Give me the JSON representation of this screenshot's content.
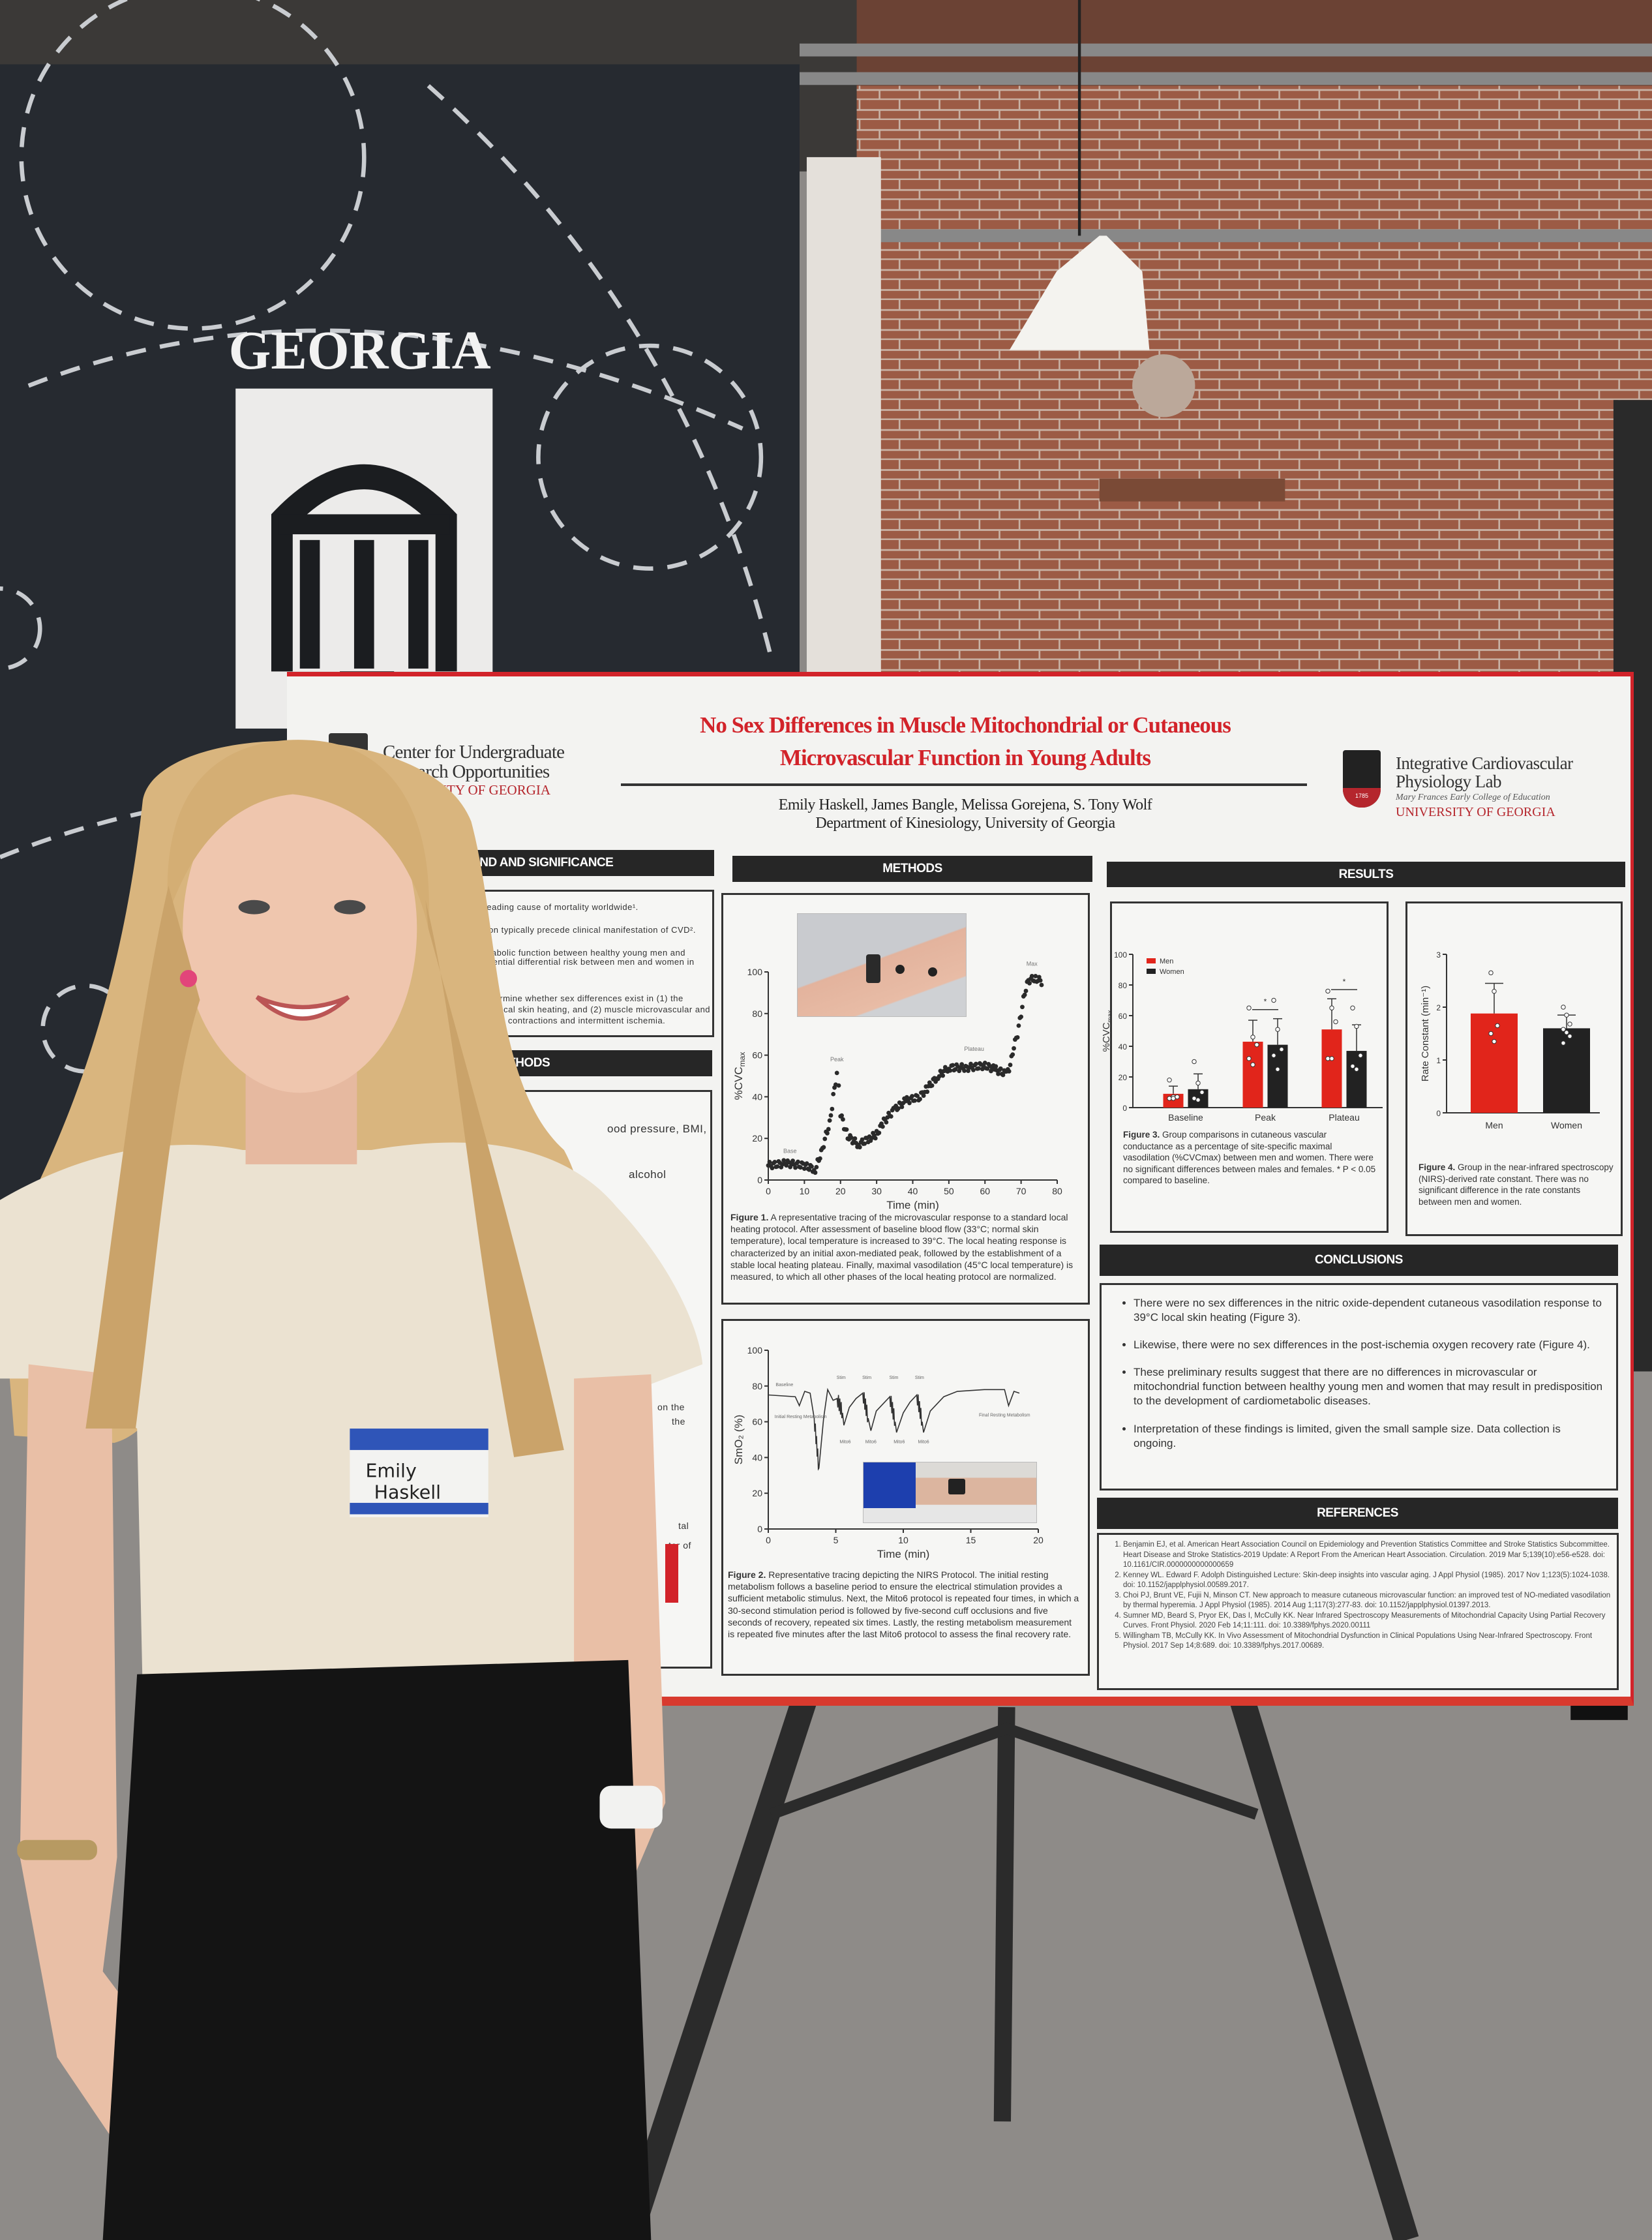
{
  "scene": {
    "banner_wordmark": "GEORGIA",
    "name_tag": {
      "first": "Emily",
      "last": "Haskell"
    }
  },
  "poster": {
    "title_line1": "No Sex Differences in Muscle Mitochondrial or Cutaneous",
    "title_line2": "Microvascular Function in Young Adults",
    "authors": "Emily Haskell, James Bangle, Melissa Gorejena, S. Tony Wolf",
    "department": "Department of Kinesiology, University of Georgia",
    "left_logo": {
      "line1": "Center for Undergraduate",
      "line2": "Research Opportunities",
      "line3": "UNIVERSITY OF GEORGIA"
    },
    "right_logo": {
      "line1": "Integrative Cardiovascular",
      "line2": "Physiology Lab",
      "line3": "Mary Frances Early College of Education",
      "line4": "UNIVERSITY OF GEORGIA",
      "seal_year": "1785"
    },
    "sections": {
      "background": "KGROUND AND SIGNIFICANCE",
      "methods_left": "ETHODS",
      "methods": "METHODS",
      "results": "RESULTS",
      "conclusions": "CONCLUSIONS",
      "references": "REFERENCES"
    },
    "background_fragments": [
      ") are the leading cause of mortality worldwide¹.",
      "ysfunction typically precede clinical manifestation of CVD².",
      "rdiometabolic function between healthy young men and",
      "into potential differential risk between men and women in",
      "s.",
      "to determine whether sex differences exist in (1) the",
      "o 39°C local skin heating, and (2) muscle microvascular and",
      "ary muscle contractions and intermittent ischemia."
    ],
    "methods_fragments": [
      "ood pressure, BMI,",
      "alcohol",
      "on the",
      "the",
      "tal",
      "tor of"
    ],
    "figure1_caption": {
      "label": "Figure 1.",
      "text": " A representative tracing of the microvascular response to a standard local heating protocol. After assessment of baseline blood flow (33°C; normal skin temperature), local temperature is increased to 39°C. The local heating response is characterized by an initial axon-mediated peak, followed by the establishment of a stable local heating plateau. Finally, maximal vasodilation (45°C local temperature) is measured, to which all other phases of the local heating protocol are normalized."
    },
    "figure2_caption": {
      "label": "Figure 2.",
      "text": " Representative tracing depicting the NIRS Protocol. The initial resting metabolism follows a baseline period to ensure the electrical stimulation provides a sufficient metabolic stimulus. Next, the Mito6 protocol is repeated four times, in which a 30-second stimulation period is followed by five-second cuff occlusions and five seconds of recovery, repeated six times. Lastly, the resting metabolism measurement is repeated five minutes after the last Mito6 protocol to assess the final recovery rate."
    },
    "figure3_caption": {
      "label": "Figure 3.",
      "text": " Group comparisons in cutaneous vascular conductance as a percentage of site-specific maximal vasodilation (%CVCmax) between men and women. There were no significant differences between males and females. * P < 0.05 compared to baseline."
    },
    "figure4_caption": {
      "label": "Figure 4.",
      "text": " Group in the near-infrared spectroscopy (NIRS)-derived rate constant. There was no significant difference in the rate constants between men and women."
    },
    "conclusions": [
      "There were no sex differences in the nitric oxide-dependent cutaneous vasodilation response to 39°C local skin heating (Figure 3).",
      "Likewise, there were no sex differences in the post-ischemia oxygen recovery rate (Figure 4).",
      "These preliminary results suggest that there are no differences in microvascular or mitochondrial function between healthy young men and women that may result in predisposition to the development of cardiometabolic diseases.",
      "Interpretation of these findings is limited, given the small sample size. Data collection is ongoing."
    ],
    "references": [
      "Benjamin EJ, et al. American Heart Association Council on Epidemiology and Prevention Statistics Committee and Stroke Statistics Subcommittee. Heart Disease and Stroke Statistics-2019 Update: A Report From the American Heart Association. Circulation. 2019 Mar 5;139(10):e56-e528. doi: 10.1161/CIR.0000000000000659",
      "Kenney WL. Edward F. Adolph Distinguished Lecture: Skin-deep insights into vascular aging. J Appl Physiol (1985). 2017 Nov 1;123(5):1024-1038. doi: 10.1152/japplphysiol.00589.2017.",
      "Choi PJ, Brunt VE, Fujii N, Minson CT. New approach to measure cutaneous microvascular function: an improved test of NO-mediated vasodilation by thermal hyperemia. J Appl Physiol (1985). 2014 Aug 1;117(3):277-83. doi: 10.1152/japplphysiol.01397.2013.",
      "Sumner MD, Beard S, Pryor EK, Das I, McCully KK. Near Infrared Spectroscopy Measurements of Mitochondrial Capacity Using Partial Recovery Curves. Front Physiol. 2020 Feb 14;11:111. doi: 10.3389/fphys.2020.00111",
      "Willingham TB, McCully KK. In Vivo Assessment of Mitochondrial Dysfunction in Clinical Populations Using Near-Infrared Spectroscopy. Front Physiol. 2017 Sep 14;8:689. doi: 10.3389/fphys.2017.00689."
    ]
  },
  "colors": {
    "uga_red": "#d2232a",
    "men": "#e1251b",
    "women": "#222222",
    "banner": "#262a30"
  },
  "chart_data": [
    {
      "id": "figure1",
      "type": "scatter",
      "xlabel": "Time (min)",
      "ylabel": "%CVC",
      "ylabel_sub": "max",
      "xlim": [
        0,
        80
      ],
      "ylim": [
        0,
        100
      ],
      "xticks": [
        0,
        10,
        20,
        30,
        40,
        50,
        60,
        70,
        80
      ],
      "yticks": [
        0,
        20,
        40,
        60,
        80,
        100
      ],
      "trace": [
        [
          0,
          7
        ],
        [
          5,
          8
        ],
        [
          10,
          7
        ],
        [
          13,
          5
        ],
        [
          14,
          10
        ],
        [
          15,
          15
        ],
        [
          16,
          22
        ],
        [
          17,
          27
        ],
        [
          18,
          40
        ],
        [
          19,
          51
        ],
        [
          19.5,
          46
        ],
        [
          20,
          32
        ],
        [
          21,
          26
        ],
        [
          22,
          21
        ],
        [
          25,
          17
        ],
        [
          28,
          20
        ],
        [
          30,
          22
        ],
        [
          32,
          28
        ],
        [
          35,
          34
        ],
        [
          38,
          38
        ],
        [
          42,
          40
        ],
        [
          44,
          44
        ],
        [
          47,
          50
        ],
        [
          50,
          54
        ],
        [
          55,
          54
        ],
        [
          60,
          55
        ],
        [
          63,
          53
        ],
        [
          66,
          51
        ],
        [
          67,
          55
        ],
        [
          68,
          64
        ],
        [
          69,
          70
        ],
        [
          70,
          80
        ],
        [
          71,
          90
        ],
        [
          72,
          96
        ],
        [
          74,
          97
        ],
        [
          76,
          95
        ]
      ],
      "annotations": [
        {
          "text": "Base",
          "x": 6,
          "y": 13
        },
        {
          "text": "Peak",
          "x": 19,
          "y": 57
        },
        {
          "text": "Plateau",
          "x": 57,
          "y": 62
        },
        {
          "text": "Max",
          "x": 73,
          "y": 103
        }
      ]
    },
    {
      "id": "figure2",
      "type": "line",
      "xlabel": "Time (min)",
      "ylabel": "SmO₂ (%)",
      "xlim": [
        0,
        20
      ],
      "ylim": [
        0,
        100
      ],
      "xticks": [
        0,
        5,
        10,
        15,
        20
      ],
      "yticks": [
        0,
        20,
        40,
        60,
        80,
        100
      ],
      "trace": [
        [
          0,
          75
        ],
        [
          2,
          74
        ],
        [
          2.3,
          69
        ],
        [
          2.7,
          77
        ],
        [
          3.1,
          76
        ],
        [
          3.4,
          62
        ],
        [
          3.75,
          34
        ],
        [
          4.1,
          62
        ],
        [
          4.4,
          78
        ],
        [
          4.8,
          72
        ],
        [
          5.1,
          73
        ],
        [
          5.5,
          65
        ],
        [
          5.6,
          58
        ],
        [
          6,
          68
        ],
        [
          6.5,
          73
        ],
        [
          7,
          76
        ],
        [
          7.4,
          62
        ],
        [
          7.6,
          55
        ],
        [
          8,
          66
        ],
        [
          8.5,
          70
        ],
        [
          9,
          74
        ],
        [
          9.4,
          60
        ],
        [
          9.5,
          54
        ],
        [
          10,
          65
        ],
        [
          10.5,
          71
        ],
        [
          11,
          75
        ],
        [
          11.4,
          60
        ],
        [
          11.5,
          54
        ],
        [
          12,
          66
        ],
        [
          12.5,
          70
        ],
        [
          13,
          74
        ],
        [
          14,
          77
        ],
        [
          16,
          78
        ],
        [
          17.5,
          78
        ],
        [
          17.8,
          69
        ],
        [
          18.2,
          77
        ],
        [
          18.6,
          76
        ]
      ],
      "annotations": [
        {
          "text": "Baseline",
          "x": 1.2,
          "y": 80
        },
        {
          "text": "Initial Resting Metabolism",
          "x": 2.4,
          "y": 62
        },
        {
          "text": "Stim",
          "x": 5.4,
          "y": 84
        },
        {
          "text": "Stim",
          "x": 7.3,
          "y": 84
        },
        {
          "text": "Stim",
          "x": 9.3,
          "y": 84
        },
        {
          "text": "Stim",
          "x": 11.2,
          "y": 84
        },
        {
          "text": "Mito6",
          "x": 5.7,
          "y": 48
        },
        {
          "text": "Mito6",
          "x": 7.6,
          "y": 48
        },
        {
          "text": "Mito6",
          "x": 9.7,
          "y": 48
        },
        {
          "text": "Mito6",
          "x": 11.5,
          "y": 48
        },
        {
          "text": "Final Resting Metabolism",
          "x": 17.5,
          "y": 63
        }
      ]
    },
    {
      "id": "figure3",
      "type": "bar",
      "ylabel": "%CVC",
      "ylabel_sub": "max",
      "ylim": [
        0,
        100
      ],
      "yticks": [
        0,
        20,
        40,
        60,
        80,
        100
      ],
      "categories": [
        "Baseline",
        "Peak",
        "Plateau"
      ],
      "series": [
        {
          "name": "Men",
          "values": [
            9,
            43,
            51
          ],
          "error_upper": [
            14,
            57,
            71
          ],
          "points": [
            [
              18,
              7,
              7,
              6,
              6
            ],
            [
              65,
              46,
              41,
              32,
              28
            ],
            [
              76,
              65,
              56,
              32,
              32
            ]
          ]
        },
        {
          "name": "Women",
          "values": [
            12,
            41,
            37
          ],
          "error_upper": [
            22,
            58,
            54
          ],
          "points": [
            [
              30,
              16,
              10,
              6,
              5
            ],
            [
              70,
              51,
              38,
              34,
              25
            ],
            [
              65,
              53,
              34,
              27,
              25
            ]
          ]
        }
      ],
      "significance": [
        {
          "category": "Peak",
          "label": "*"
        },
        {
          "category": "Plateau",
          "label": "*"
        }
      ],
      "legend": "top-left"
    },
    {
      "id": "figure4",
      "type": "bar",
      "ylabel": "Rate Constant (min⁻¹)",
      "ylim": [
        0,
        3
      ],
      "yticks": [
        0,
        1,
        2,
        3
      ],
      "categories": [
        "Men",
        "Women"
      ],
      "values": [
        1.88,
        1.6
      ],
      "error_upper": [
        2.45,
        1.85
      ],
      "points": [
        [
          2.65,
          2.3,
          1.65,
          1.5,
          1.35
        ],
        [
          2.0,
          1.85,
          1.68,
          1.58,
          1.52,
          1.45,
          1.32
        ]
      ]
    }
  ]
}
